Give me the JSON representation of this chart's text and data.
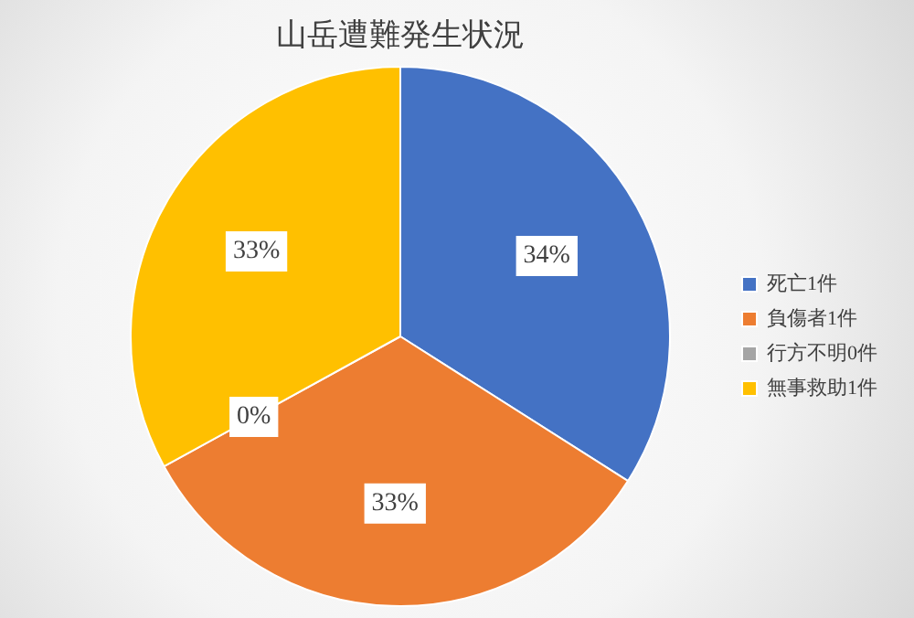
{
  "chart_data": {
    "type": "pie",
    "title": "山岳遭難発生状況",
    "categories": [
      "死亡1件",
      "負傷者1件",
      "行方不明0件",
      "無事救助1件"
    ],
    "values": [
      34,
      33,
      0,
      33
    ],
    "value_labels": [
      "34%",
      "33%",
      "0%",
      "33%"
    ],
    "colors": [
      "#4472c4",
      "#ed7d31",
      "#a5a5a5",
      "#ffc000"
    ],
    "legend": "right"
  }
}
